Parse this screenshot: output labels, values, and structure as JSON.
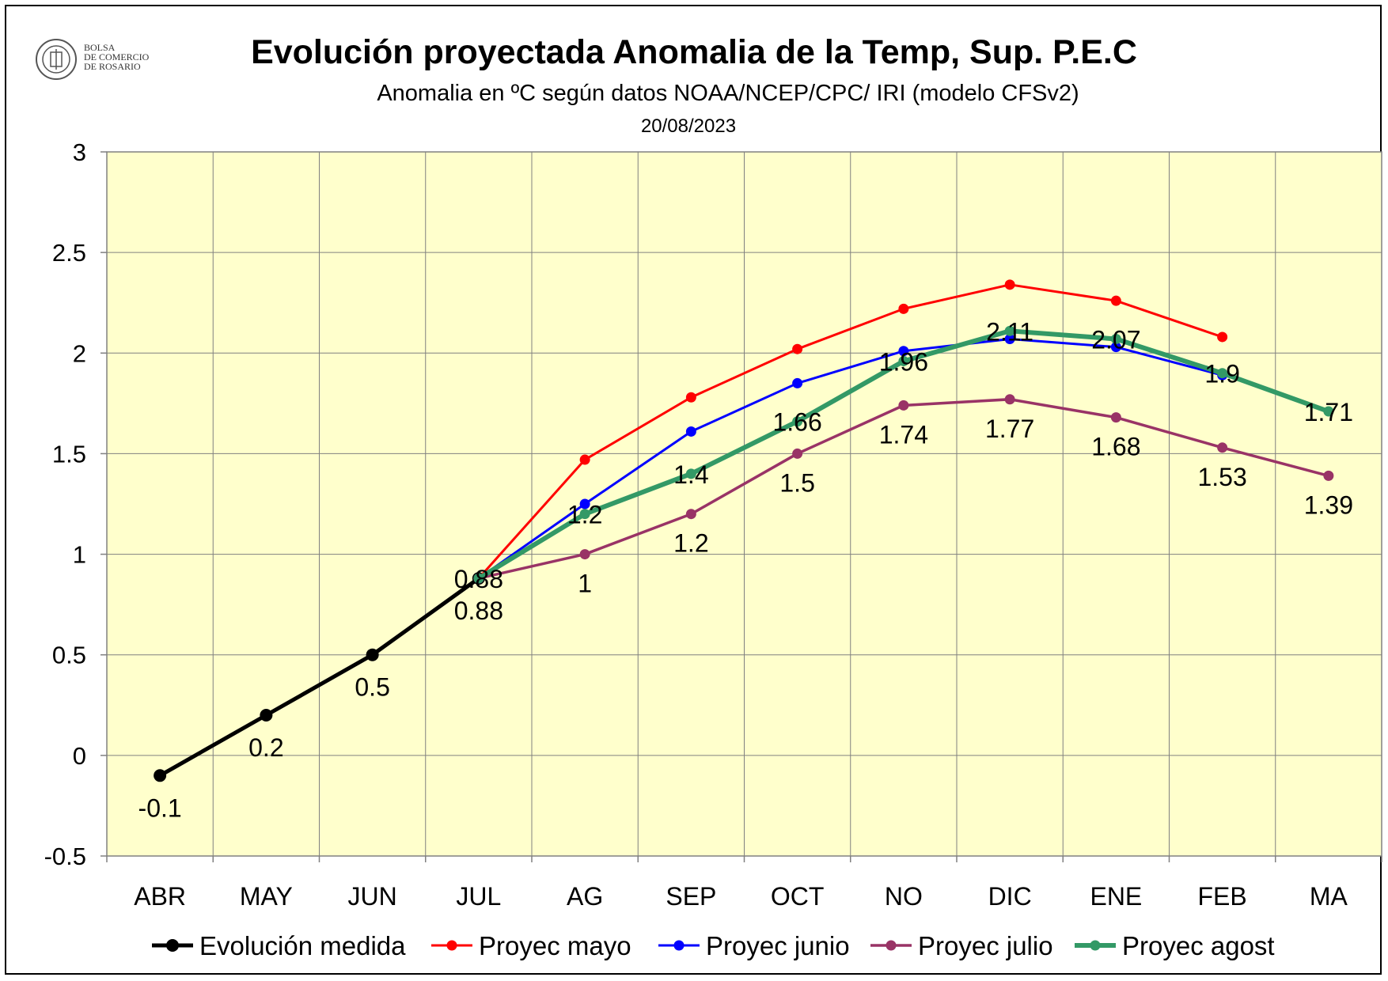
{
  "header": {
    "title": "Evolución proyectada Anomalia de la Temp, Sup.  P.E.C",
    "subtitle": "Anomalia en ºC según datos NOAA/NCEP/CPC/ IRI (modelo CFSv2)",
    "date": "20/08/2023",
    "logo_text": [
      "BOLSA",
      "DE COMERCIO",
      "DE ROSARIO"
    ]
  },
  "chart_data": {
    "type": "line",
    "categories": [
      "ABR",
      "MAY",
      "JUN",
      "JUL",
      "AG",
      "SEP",
      "OCT",
      "NO",
      "DIC",
      "ENE",
      "FEB",
      "MA"
    ],
    "ylim": [
      -0.5,
      3
    ],
    "yticks": [
      "3",
      "2.5",
      "2",
      "1.5",
      "1",
      "0.5",
      "0",
      "-0.5"
    ],
    "plot_background": "#FFFFCC",
    "grid": true,
    "legend_position": "bottom",
    "series": [
      {
        "name": "Evolución medida",
        "color": "#000000",
        "values": [
          -0.1,
          0.2,
          0.5,
          0.88,
          null,
          null,
          null,
          null,
          null,
          null,
          null,
          null
        ],
        "labels": [
          "-0.1",
          "0.2",
          "0.5",
          "0.88",
          null,
          null,
          null,
          null,
          null,
          null,
          null,
          null
        ]
      },
      {
        "name": "Proyec  mayo",
        "color": "#FF0000",
        "values": [
          null,
          null,
          null,
          0.88,
          1.47,
          1.78,
          2.02,
          2.22,
          2.34,
          2.26,
          2.08,
          null
        ],
        "labels": []
      },
      {
        "name": "Proyec junio",
        "color": "#0000FF",
        "values": [
          null,
          null,
          null,
          0.88,
          1.25,
          1.61,
          1.85,
          2.01,
          2.07,
          2.03,
          1.89,
          null
        ],
        "labels": []
      },
      {
        "name": "Proyec julio",
        "color": "#993366",
        "values": [
          null,
          null,
          null,
          0.88,
          1.0,
          1.2,
          1.5,
          1.74,
          1.77,
          1.68,
          1.53,
          1.39
        ],
        "labels": [
          null,
          null,
          null,
          null,
          "1",
          "1.2",
          "1.5",
          "1.74",
          "1.77",
          "1.68",
          "1.53",
          "1.39"
        ]
      },
      {
        "name": "Proyec agost",
        "color": "#339966",
        "values": [
          null,
          null,
          null,
          0.88,
          1.2,
          1.4,
          1.66,
          1.96,
          2.11,
          2.07,
          1.9,
          1.71
        ],
        "labels": [
          null,
          null,
          null,
          "0.88",
          "1.2",
          "1.4",
          "1.66",
          "1.96",
          "2.11",
          "2.07",
          "1.9",
          "1.71"
        ]
      }
    ]
  }
}
